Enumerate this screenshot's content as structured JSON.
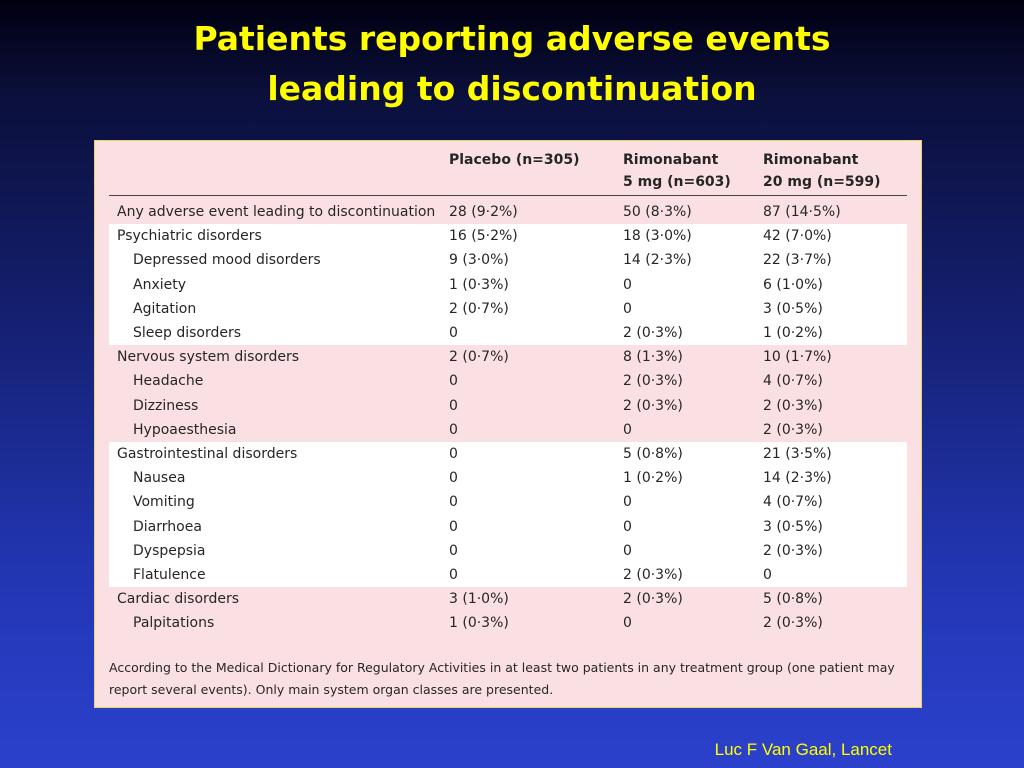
{
  "slide": {
    "title_line1": "Patients reporting adverse events",
    "title_line2": "leading to discontinuation",
    "credit": "Luc F Van Gaal, Lancet"
  },
  "table": {
    "headers": {
      "col1": "Placebo (n=305)",
      "col2_line1": "Rimonabant",
      "col2_line2": "5 mg (n=603)",
      "col3_line1": "Rimonabant",
      "col3_line2": "20 mg (n=599)"
    },
    "rows": [
      {
        "label": "Any adverse event leading to discontinuation",
        "indent": false,
        "shade": "pink",
        "placebo": "28 (9·2%)",
        "r5": "50 (8·3%)",
        "r20": "87 (14·5%)"
      },
      {
        "label": "Psychiatric disorders",
        "indent": false,
        "shade": "white",
        "placebo": "16 (5·2%)",
        "r5": "18 (3·0%)",
        "r20": "42 (7·0%)"
      },
      {
        "label": "Depressed mood disorders",
        "indent": true,
        "shade": "white",
        "placebo": "9 (3·0%)",
        "r5": "14 (2·3%)",
        "r20": "22 (3·7%)"
      },
      {
        "label": "Anxiety",
        "indent": true,
        "shade": "white",
        "placebo": "1 (0·3%)",
        "r5": "0",
        "r20": "6 (1·0%)"
      },
      {
        "label": "Agitation",
        "indent": true,
        "shade": "white",
        "placebo": "2 (0·7%)",
        "r5": "0",
        "r20": "3 (0·5%)"
      },
      {
        "label": "Sleep disorders",
        "indent": true,
        "shade": "white",
        "placebo": "0",
        "r5": "2 (0·3%)",
        "r20": "1 (0·2%)"
      },
      {
        "label": "Nervous system disorders",
        "indent": false,
        "shade": "pink",
        "placebo": "2 (0·7%)",
        "r5": "8 (1·3%)",
        "r20": "10 (1·7%)"
      },
      {
        "label": "Headache",
        "indent": true,
        "shade": "pink",
        "placebo": "0",
        "r5": "2 (0·3%)",
        "r20": "4 (0·7%)"
      },
      {
        "label": "Dizziness",
        "indent": true,
        "shade": "pink",
        "placebo": "0",
        "r5": "2 (0·3%)",
        "r20": "2 (0·3%)"
      },
      {
        "label": "Hypoaesthesia",
        "indent": true,
        "shade": "pink",
        "placebo": "0",
        "r5": "0",
        "r20": "2 (0·3%)"
      },
      {
        "label": "Gastrointestinal disorders",
        "indent": false,
        "shade": "white",
        "placebo": "0",
        "r5": "5 (0·8%)",
        "r20": "21 (3·5%)"
      },
      {
        "label": "Nausea",
        "indent": true,
        "shade": "white",
        "placebo": "0",
        "r5": "1 (0·2%)",
        "r20": "14 (2·3%)"
      },
      {
        "label": "Vomiting",
        "indent": true,
        "shade": "white",
        "placebo": "0",
        "r5": "0",
        "r20": "4 (0·7%)"
      },
      {
        "label": "Diarrhoea",
        "indent": true,
        "shade": "white",
        "placebo": "0",
        "r5": "0",
        "r20": "3 (0·5%)"
      },
      {
        "label": "Dyspepsia",
        "indent": true,
        "shade": "white",
        "placebo": "0",
        "r5": "0",
        "r20": "2 (0·3%)"
      },
      {
        "label": "Flatulence",
        "indent": true,
        "shade": "white",
        "placebo": "0",
        "r5": "2 (0·3%)",
        "r20": "0"
      },
      {
        "label": "Cardiac disorders",
        "indent": false,
        "shade": "pink",
        "placebo": "3 (1·0%)",
        "r5": "2 (0·3%)",
        "r20": "5 (0·8%)"
      },
      {
        "label": "Palpitations",
        "indent": true,
        "shade": "pink",
        "placebo": "1 (0·3%)",
        "r5": "0",
        "r20": "2 (0·3%)"
      }
    ],
    "footnote_line1": "According to the Medical Dictionary for Regulatory Activities in at least two patients in any treatment group (one patient may",
    "footnote_line2": "report several events). Only main system organ classes are presented."
  },
  "colors": {
    "title": "#ffff00",
    "panel_pink": "#fbe0e3",
    "row_white": "#ffffff"
  }
}
